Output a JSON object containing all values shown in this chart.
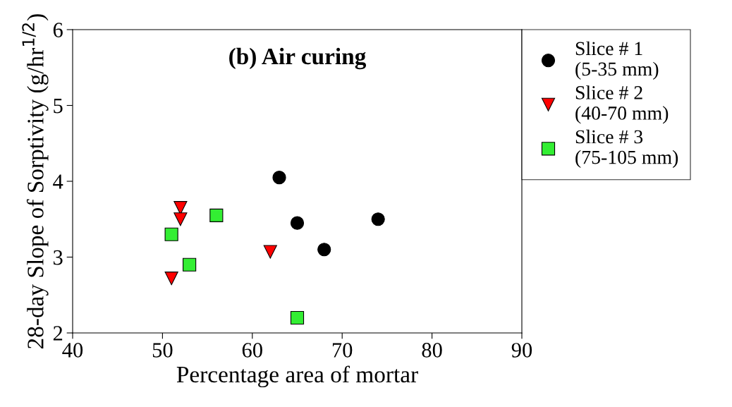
{
  "chart_data": {
    "type": "scatter",
    "title": "(b) Air curing",
    "xlabel": "Percentage area of mortar",
    "ylabel": "28-day Slope of Sorptivity (g/hr$^{1/2}$)",
    "xlim": [
      40,
      90
    ],
    "xticks": [
      40,
      50,
      60,
      70,
      80,
      90
    ],
    "ylim": [
      2,
      6
    ],
    "yticks": [
      2,
      3,
      4,
      5,
      6
    ],
    "grid": false,
    "legend": "top right",
    "series": [
      {
        "name": "Slice # 1\n(5-35 mm)",
        "color": "#000000",
        "marker": "circle",
        "x": [
          63,
          65,
          68,
          74
        ],
        "values": [
          4.05,
          3.45,
          3.1,
          3.5
        ]
      },
      {
        "name": "Slice # 2\n(40-70 mm)",
        "color": "#ff0000",
        "marker": "triangle",
        "x": [
          52,
          52,
          62,
          51
        ],
        "values": [
          3.65,
          3.5,
          3.07,
          2.72
        ]
      },
      {
        "name": "Slice # 3\n(75-105 mm)",
        "color": "#33ee33",
        "marker": "square",
        "x": [
          51,
          56,
          53,
          65
        ],
        "values": [
          3.3,
          3.55,
          2.9,
          2.2
        ]
      }
    ]
  }
}
